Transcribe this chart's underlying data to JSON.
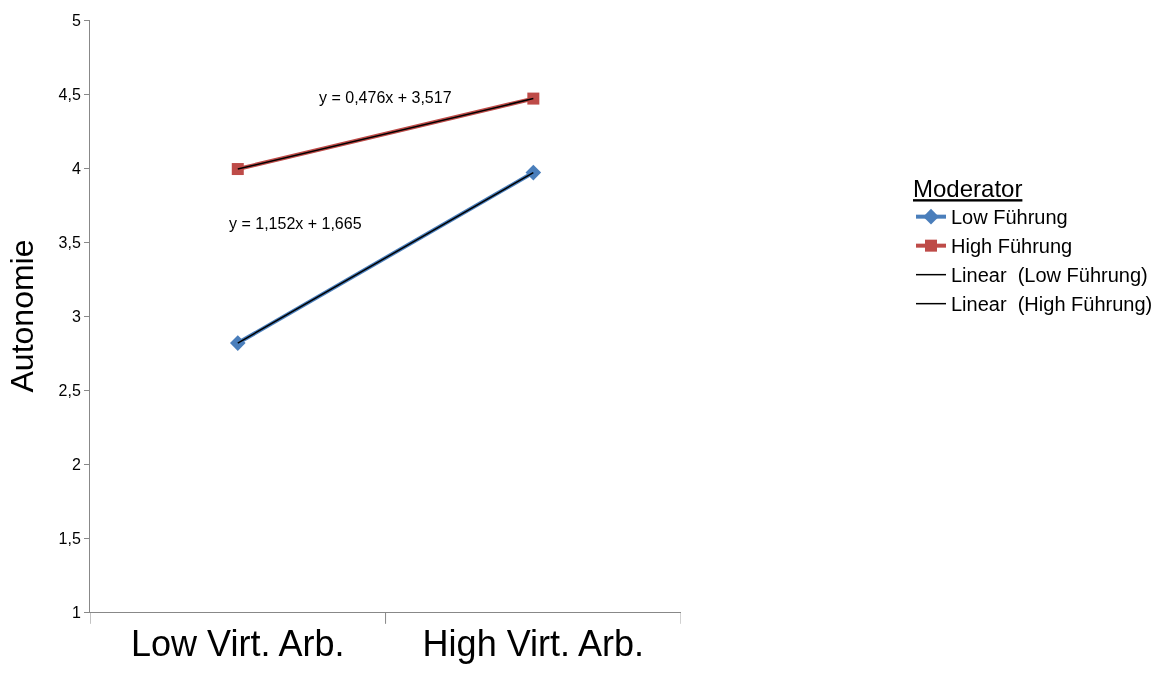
{
  "chart_data": {
    "type": "line",
    "ylabel": "Autonomie",
    "legend_title": "Moderator",
    "categories": [
      "Low Virt. Arb.",
      "High Virt. Arb."
    ],
    "series": [
      {
        "name": "Low Führung",
        "color": "#4a7ebb",
        "values": [
          2.817,
          3.969
        ],
        "marker": "diamond"
      },
      {
        "name": "High Führung",
        "color": "#be4b48",
        "values": [
          3.993,
          4.469
        ],
        "marker": "square"
      },
      {
        "name": "Linear  (Low Führung)",
        "color": "#000000",
        "values": [
          2.817,
          3.969
        ],
        "marker": "none"
      },
      {
        "name": "Linear  (High Führung)",
        "color": "#000000",
        "values": [
          3.993,
          4.469
        ],
        "marker": "none"
      }
    ],
    "annotations": [
      "y = 1,152x + 1,665",
      "y = 0,476x + 3,517"
    ],
    "ylim": [
      1,
      5
    ],
    "yticks": [
      1,
      {
        "value": 1.5,
        "label": "1,5"
      },
      2,
      {
        "value": 2.5,
        "label": "2,5"
      },
      3,
      {
        "value": 3.5,
        "label": "3,5"
      },
      4,
      {
        "value": 4.5,
        "label": "4,5"
      },
      5
    ],
    "legend": "right"
  }
}
